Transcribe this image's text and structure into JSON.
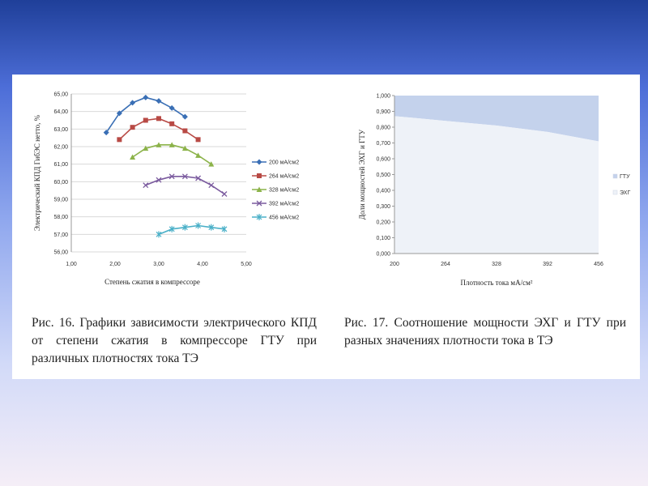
{
  "colors": {
    "grid": "#d9d9d9",
    "gtu_area": "#c4d2ec",
    "ehg_area": "#eef2f8"
  },
  "captions": {
    "fig16": "Рис. 16. Графики зависимости электрического КПД от степени сжатия в компрессоре ГТУ при различных плотностях тока ТЭ",
    "fig17": "Рис. 17. Соотношение мощности ЭХГ и ГТУ при разных значениях плотности тока в ТЭ"
  },
  "chart_data": [
    {
      "type": "line",
      "xlabel": "Степень сжатия в компрессоре",
      "ylabel": "Электрический КПД ГибЭС нетто, %",
      "xlim": [
        1.0,
        5.0
      ],
      "ylim": [
        56.0,
        65.0
      ],
      "xticks": [
        "1,00",
        "2,00",
        "3,00",
        "4,00",
        "5,00"
      ],
      "yticks": [
        "56,00",
        "57,00",
        "58,00",
        "59,00",
        "60,00",
        "61,00",
        "62,00",
        "63,00",
        "64,00",
        "65,00"
      ],
      "grid": true,
      "legend_position": "right",
      "series": [
        {
          "name": "200 мА/см2",
          "color": "#3a6fb5",
          "marker": "diamond",
          "x": [
            1.8,
            2.1,
            2.4,
            2.7,
            3.0,
            3.3,
            3.6
          ],
          "y": [
            62.8,
            63.9,
            64.5,
            64.8,
            64.6,
            64.2,
            63.7
          ]
        },
        {
          "name": "264 мА/см2",
          "color": "#b84a45",
          "marker": "square",
          "x": [
            2.1,
            2.4,
            2.7,
            3.0,
            3.3,
            3.6,
            3.9
          ],
          "y": [
            62.4,
            63.1,
            63.5,
            63.6,
            63.3,
            62.9,
            62.4
          ]
        },
        {
          "name": "328 мА/см2",
          "color": "#8cb34a",
          "marker": "triangle",
          "x": [
            2.4,
            2.7,
            3.0,
            3.3,
            3.6,
            3.9,
            4.2
          ],
          "y": [
            61.4,
            61.9,
            62.1,
            62.1,
            61.9,
            61.5,
            61.0
          ]
        },
        {
          "name": "392 мА/см2",
          "color": "#7a5a9e",
          "marker": "x",
          "x": [
            2.7,
            3.0,
            3.3,
            3.6,
            3.9,
            4.2,
            4.5
          ],
          "y": [
            59.8,
            60.1,
            60.3,
            60.3,
            60.2,
            59.8,
            59.3
          ]
        },
        {
          "name": "456 мА/см2",
          "color": "#4bb0c8",
          "marker": "star",
          "x": [
            3.0,
            3.3,
            3.6,
            3.9,
            4.2,
            4.5
          ],
          "y": [
            57.0,
            57.3,
            57.4,
            57.5,
            57.4,
            57.3
          ]
        }
      ]
    },
    {
      "type": "area",
      "xlabel": "Плотность тока мА/см²",
      "ylabel": "Доли мощностей ЭХГ и ГТУ",
      "categories": [
        "200",
        "264",
        "328",
        "392",
        "456"
      ],
      "ylim": [
        0.0,
        1.0
      ],
      "yticks": [
        "0,000",
        "0,100",
        "0,200",
        "0,300",
        "0,400",
        "0,500",
        "0,600",
        "0,700",
        "0,800",
        "0,900",
        "1,000"
      ],
      "grid": false,
      "legend_position": "right",
      "series": [
        {
          "name": "ЭХГ",
          "values": [
            0.87,
            0.84,
            0.81,
            0.77,
            0.71
          ]
        },
        {
          "name": "ГТУ",
          "values": [
            0.13,
            0.16,
            0.19,
            0.23,
            0.29
          ]
        }
      ]
    }
  ]
}
